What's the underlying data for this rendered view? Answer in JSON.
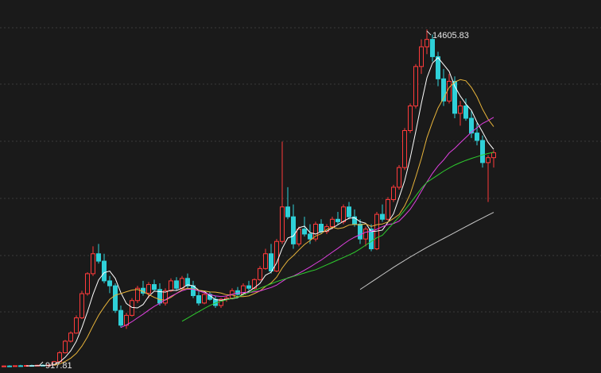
{
  "chart_data": {
    "type": "candlestick",
    "ylim": [
      660,
      15800
    ],
    "up_color": "#ff3b3b",
    "down_color": "#2fd0d8",
    "candles": [
      [
        930,
        960,
        920,
        945
      ],
      [
        945,
        975,
        925,
        935
      ],
      [
        935,
        965,
        922,
        955
      ],
      [
        955,
        990,
        940,
        950
      ],
      [
        950,
        985,
        930,
        965
      ],
      [
        965,
        1000,
        945,
        950
      ],
      [
        950,
        990,
        935,
        975
      ],
      [
        975,
        1010,
        950,
        960
      ],
      [
        960,
        1000,
        917.81,
        985
      ],
      [
        985,
        1150,
        970,
        1120
      ],
      [
        1120,
        1550,
        1100,
        1480
      ],
      [
        1480,
        2000,
        1450,
        1950
      ],
      [
        1950,
        2350,
        1900,
        2280
      ],
      [
        2280,
        3000,
        2250,
        2900
      ],
      [
        2900,
        4000,
        2850,
        3880
      ],
      [
        3880,
        4750,
        3800,
        4690
      ],
      [
        4690,
        5800,
        4600,
        5500
      ],
      [
        5500,
        5900,
        5100,
        5200
      ],
      [
        5200,
        5500,
        4300,
        4400
      ],
      [
        4400,
        4600,
        3900,
        4200
      ],
      [
        4200,
        4300,
        3100,
        3200
      ],
      [
        3200,
        3400,
        2500,
        2600
      ],
      [
        2600,
        3100,
        2450,
        3000
      ],
      [
        3000,
        3700,
        2950,
        3600
      ],
      [
        3600,
        4200,
        3500,
        4100
      ],
      [
        4100,
        4400,
        3800,
        3900
      ],
      [
        3900,
        4350,
        3700,
        4250
      ],
      [
        4250,
        4450,
        4000,
        4050
      ],
      [
        4050,
        4300,
        3400,
        3500
      ],
      [
        3500,
        4100,
        3400,
        4000
      ],
      [
        4000,
        4500,
        3950,
        4400
      ],
      [
        4400,
        4550,
        4000,
        4100
      ],
      [
        4100,
        4600,
        4050,
        4500
      ],
      [
        4500,
        4700,
        4100,
        4200
      ],
      [
        4200,
        4400,
        3700,
        3800
      ],
      [
        3800,
        4000,
        3400,
        3500
      ],
      [
        3500,
        3900,
        3450,
        3850
      ],
      [
        3850,
        3950,
        3600,
        3650
      ],
      [
        3650,
        3800,
        3300,
        3400
      ],
      [
        3400,
        3700,
        3300,
        3650
      ],
      [
        3650,
        3800,
        3550,
        3700
      ],
      [
        3700,
        4100,
        3650,
        4000
      ],
      [
        4000,
        4150,
        3800,
        3850
      ],
      [
        3850,
        4300,
        3800,
        4200
      ],
      [
        4200,
        4400,
        4000,
        4100
      ],
      [
        4100,
        4500,
        4050,
        4450
      ],
      [
        4450,
        5000,
        4400,
        4900
      ],
      [
        4900,
        5700,
        4850,
        5500
      ],
      [
        5500,
        5900,
        4700,
        4800
      ],
      [
        4800,
        6100,
        4750,
        6000
      ],
      [
        6000,
        10050,
        5900,
        7400
      ],
      [
        7400,
        8200,
        6900,
        7000
      ],
      [
        7000,
        7500,
        5700,
        5900
      ],
      [
        5900,
        6600,
        5800,
        6500
      ],
      [
        6500,
        7000,
        6200,
        6300
      ],
      [
        6300,
        6700,
        5900,
        6100
      ],
      [
        6100,
        6800,
        6000,
        6700
      ],
      [
        6700,
        6900,
        6300,
        6400
      ],
      [
        6400,
        6700,
        6300,
        6600
      ],
      [
        6600,
        7000,
        6500,
        6900
      ],
      [
        6900,
        7200,
        6700,
        6800
      ],
      [
        6800,
        7500,
        6700,
        7400
      ],
      [
        7400,
        7600,
        6900,
        7000
      ],
      [
        7000,
        7300,
        6600,
        6700
      ],
      [
        6700,
        6900,
        5900,
        6100
      ],
      [
        6100,
        6600,
        5800,
        6500
      ],
      [
        6500,
        6700,
        5600,
        5700
      ],
      [
        5700,
        7200,
        5650,
        7100
      ],
      [
        7100,
        7500,
        6800,
        6900
      ],
      [
        6900,
        7800,
        6850,
        7700
      ],
      [
        7700,
        8300,
        7600,
        8200
      ],
      [
        8200,
        9100,
        8100,
        9000
      ],
      [
        9000,
        10600,
        8900,
        10500
      ],
      [
        10500,
        11600,
        10400,
        11500
      ],
      [
        11500,
        13200,
        11400,
        13100
      ],
      [
        13100,
        14200,
        12800,
        13900
      ],
      [
        13900,
        14605.83,
        13600,
        14200
      ],
      [
        14200,
        14400,
        13300,
        13500
      ],
      [
        13500,
        13700,
        12300,
        12600
      ],
      [
        12600,
        13000,
        11500,
        11700
      ],
      [
        11700,
        12800,
        11600,
        12500
      ],
      [
        12500,
        12700,
        11000,
        11200
      ],
      [
        11200,
        11700,
        10700,
        11500
      ],
      [
        11500,
        11800,
        10900,
        11000
      ],
      [
        11000,
        11300,
        10200,
        10400
      ],
      [
        10400,
        10800,
        9900,
        10100
      ],
      [
        10100,
        10300,
        9000,
        9200
      ],
      [
        9200,
        9500,
        7600,
        9400
      ],
      [
        9400,
        9700,
        9000,
        9600
      ]
    ],
    "series": [
      {
        "color": "#ffffff",
        "values": [
          null,
          null,
          null,
          null,
          950,
          951,
          959,
          960,
          967,
          998,
          1104,
          1299,
          1563,
          1946,
          2498,
          3140,
          3850,
          4434,
          4734,
          4798,
          4500,
          3920,
          3480,
          3320,
          3300,
          3440,
          3770,
          3980,
          3960,
          3940,
          4020,
          4010,
          4100,
          4240,
          4200,
          4020,
          3970,
          3800,
          3640,
          3610,
          3650,
          3680,
          3720,
          3880,
          3970,
          4120,
          4300,
          4630,
          4750,
          5130,
          5720,
          6140,
          6220,
          6560,
          6620,
          6360,
          6300,
          6400,
          6420,
          6540,
          6680,
          6820,
          6940,
          6960,
          6800,
          6740,
          6400,
          6420,
          6460,
          6780,
          7120,
          7780,
          8460,
          9380,
          10460,
          11600,
          12640,
          13240,
          13460,
          13180,
          12900,
          12300,
          11900,
          11580,
          11320,
          10840,
          10440,
          10020,
          9740
        ]
      },
      {
        "color": "#e8b43a",
        "values": [
          null,
          null,
          null,
          null,
          null,
          null,
          null,
          null,
          null,
          974,
          1028,
          1129,
          1262,
          1457,
          1748,
          2122,
          2575,
          2999,
          3340,
          3648,
          3820,
          3885,
          3957,
          4027,
          4049,
          3970,
          3845,
          3730,
          3640,
          3620,
          3730,
          3890,
          4040,
          4100,
          4070,
          4020,
          3990,
          3950,
          3940,
          3905,
          3835,
          3825,
          3760,
          3760,
          3790,
          3885,
          3990,
          4175,
          4315,
          4550,
          4920,
          5220,
          5425,
          5655,
          5875,
          6040,
          6220,
          6310,
          6490,
          6580,
          6520,
          6560,
          6670,
          6690,
          6670,
          6710,
          6610,
          6680,
          6710,
          6790,
          6930,
          7090,
          7440,
          7920,
          8620,
          9360,
          10210,
          10850,
          11420,
          11820,
          12250,
          12470,
          12570,
          12520,
          12250,
          11870,
          11370,
          10960,
          10660
        ]
      },
      {
        "color": "#e040e0",
        "values": [
          null,
          null,
          null,
          null,
          null,
          null,
          null,
          null,
          null,
          null,
          null,
          null,
          null,
          null,
          null,
          null,
          null,
          null,
          null,
          null,
          null,
          2507,
          2610,
          2742,
          2899,
          3046,
          3210,
          3365,
          3490,
          3634,
          3775,
          3888,
          3999,
          4064,
          4060,
          3995,
          3918,
          3840,
          3790,
          3763,
          3783,
          3858,
          3900,
          3930,
          3930,
          3953,
          3990,
          4063,
          4128,
          4228,
          4378,
          4523,
          4593,
          4708,
          4833,
          4963,
          5105,
          5243,
          5403,
          5565,
          5720,
          5890,
          6048,
          6173,
          6273,
          6375,
          6415,
          6495,
          6600,
          6685,
          6725,
          6825,
          7055,
          7305,
          7645,
          8035,
          8410,
          8765,
          9065,
          9305,
          9590,
          9780,
          10005,
          10220,
          10435,
          10615,
          10790,
          10905,
          11040
        ]
      },
      {
        "color": "#2ecc2e",
        "values": [
          null,
          null,
          null,
          null,
          null,
          null,
          null,
          null,
          null,
          null,
          null,
          null,
          null,
          null,
          null,
          null,
          null,
          null,
          null,
          null,
          null,
          null,
          null,
          null,
          null,
          null,
          null,
          null,
          null,
          null,
          null,
          null,
          2760,
          2890,
          3020,
          3150,
          3280,
          3400,
          3500,
          3570,
          3630,
          3690,
          3740,
          3830,
          3920,
          4010,
          4100,
          4190,
          4280,
          4370,
          4440,
          4510,
          4580,
          4650,
          4720,
          4790,
          4850,
          4950,
          5050,
          5150,
          5250,
          5350,
          5450,
          5560,
          5700,
          5850,
          6000,
          6150,
          6250,
          6500,
          6750,
          7000,
          7270,
          7550,
          7850,
          8150,
          8400,
          8550,
          8700,
          8850,
          8980,
          9100,
          9200,
          9290,
          9370,
          9440,
          9510,
          9570,
          9620
        ]
      },
      {
        "color": "#c8c8c8",
        "values": [
          null,
          null,
          null,
          null,
          null,
          null,
          null,
          null,
          null,
          null,
          null,
          null,
          null,
          null,
          null,
          null,
          null,
          null,
          null,
          null,
          null,
          null,
          null,
          null,
          null,
          null,
          null,
          null,
          null,
          null,
          null,
          null,
          null,
          null,
          null,
          null,
          null,
          null,
          null,
          null,
          null,
          null,
          null,
          null,
          null,
          null,
          null,
          null,
          null,
          null,
          null,
          null,
          null,
          null,
          null,
          null,
          null,
          null,
          null,
          null,
          null,
          null,
          null,
          null,
          4050,
          4200,
          4350,
          4500,
          4650,
          4800,
          4950,
          5090,
          5230,
          5370,
          5500,
          5630,
          5760,
          5880,
          6000,
          6120,
          6240,
          6360,
          6480,
          6600,
          6720,
          6840,
          6950,
          7070,
          7180
        ]
      }
    ],
    "annotations": [
      {
        "label": "14605.83",
        "value": 14605.83,
        "index": 76
      },
      {
        "label": "917.81",
        "value": 917.81,
        "index": 8
      }
    ]
  }
}
